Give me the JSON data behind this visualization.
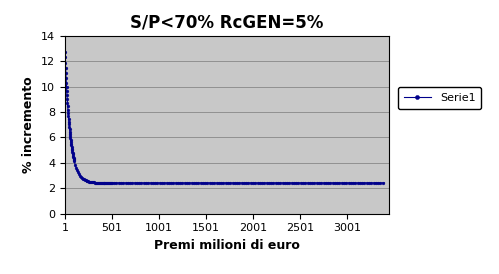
{
  "title": "S/P<70% RcGEN=5%",
  "xlabel": "Premi milioni di euro",
  "ylabel": "% incremento",
  "legend_label": "Serie1",
  "line_color": "#00008B",
  "marker": "o",
  "marker_size": 2.0,
  "xlim": [
    1,
    3450
  ],
  "ylim": [
    0,
    14
  ],
  "xticks": [
    1,
    501,
    1001,
    1501,
    2001,
    2501,
    3001
  ],
  "yticks": [
    0,
    2,
    4,
    6,
    8,
    10,
    12,
    14
  ],
  "plot_bg_color": "#C8C8C8",
  "fig_bg_color": "#FFFFFF",
  "title_fontsize": 12,
  "axis_label_fontsize": 9,
  "tick_fontsize": 8,
  "x_start": 1,
  "x_end": 3400,
  "curve_a": 2.42,
  "curve_b": 10.5,
  "curve_c": 0.018
}
